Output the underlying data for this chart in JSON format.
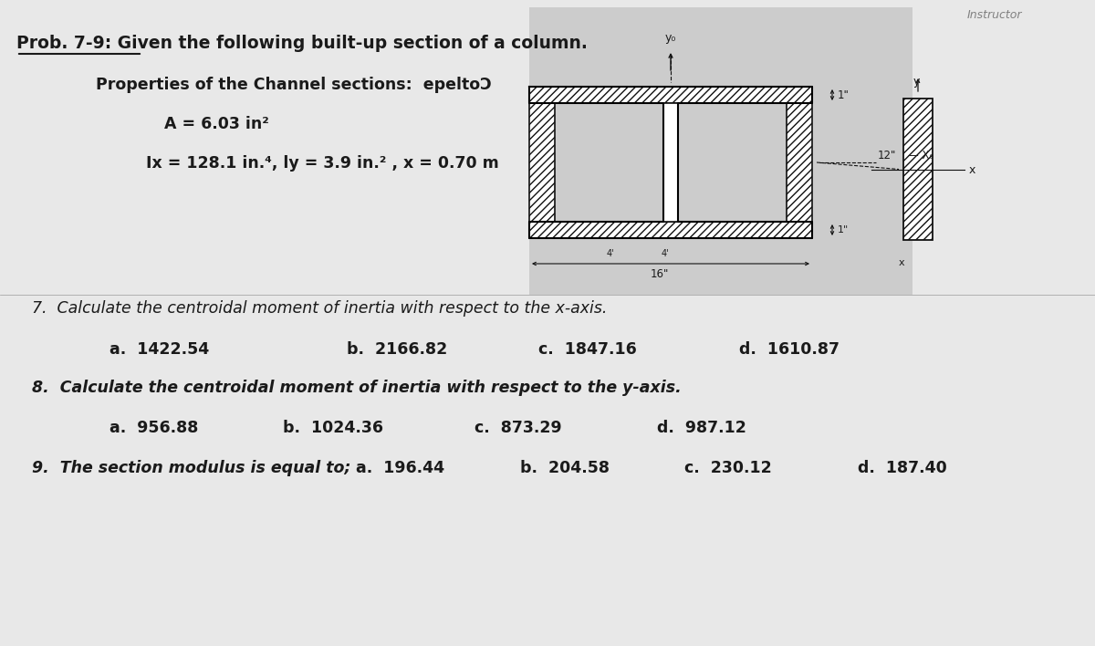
{
  "bg_color": "#e8e8e8",
  "title_line1": "Prob. 7-9: Given the following built-up section of a column.",
  "title_line2": "Properties of the Channel sections:  epeltoƆ",
  "prop_A": "A = 6.03 in²",
  "prop_Ix": "Ix = 128.1 in.⁴, ly = 3.9 in.² , x = 0.70 m",
  "q7_text": "7.  Calculate the centroidal moment of inertia with respect to the x-axis.",
  "q7_a": "a.  1422.54",
  "q7_b": "b.  2166.82",
  "q7_c": "c.  1847.16",
  "q7_d": "d.  1610.87",
  "q8_text": "8.  Calculate the centroidal moment of inertia with respect to the y-axis.",
  "q8_a": "a.  956.88",
  "q8_b": "b.  1024.36",
  "q8_c": "c.  873.29",
  "q8_d": "d.  987.12",
  "q9_text": "9.  The section modulus is equal to;",
  "q9_a": "a.  196.44",
  "q9_b": "b.  204.58",
  "q9_c": "c.  230.12",
  "q9_d": "d.  187.40",
  "text_color": "#1a1a1a",
  "figure_bg": "#d0d0d0"
}
